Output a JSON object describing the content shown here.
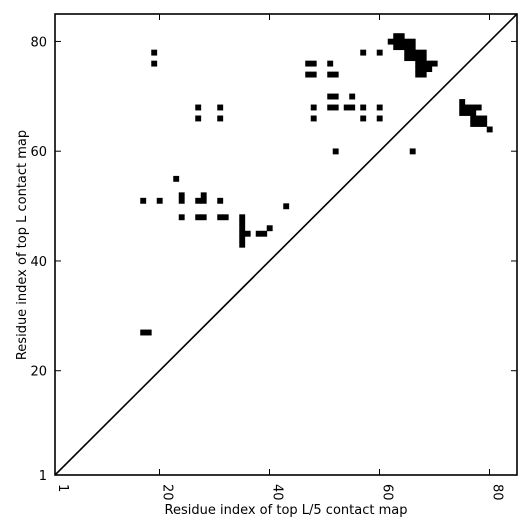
{
  "chart_data": {
    "type": "heatmap",
    "title": "",
    "xlabel": "Residue index of top L/5 contact map",
    "ylabel": "Residue index of top L contact map",
    "xlim": [
      1,
      85
    ],
    "ylim": [
      1,
      85
    ],
    "xticks": [
      1,
      20,
      40,
      60,
      80
    ],
    "yticks": [
      1,
      20,
      40,
      60,
      80
    ],
    "x_tick_rotation": -90,
    "grid": false,
    "diagonal_line": true,
    "cell_color": "#000000",
    "contacts": [
      [
        19,
        78
      ],
      [
        19,
        76
      ],
      [
        17,
        51
      ],
      [
        20,
        51
      ],
      [
        17,
        27
      ],
      [
        18,
        27
      ],
      [
        23,
        55
      ],
      [
        24,
        52
      ],
      [
        24,
        51
      ],
      [
        24,
        48
      ],
      [
        27,
        68
      ],
      [
        27,
        66
      ],
      [
        27,
        51
      ],
      [
        27,
        48
      ],
      [
        28,
        52
      ],
      [
        28,
        51
      ],
      [
        28,
        48
      ],
      [
        31,
        68
      ],
      [
        31,
        66
      ],
      [
        31,
        51
      ],
      [
        31,
        48
      ],
      [
        32,
        48
      ],
      [
        35,
        48
      ],
      [
        35,
        47
      ],
      [
        35,
        46
      ],
      [
        35,
        45
      ],
      [
        35,
        44
      ],
      [
        35,
        43
      ],
      [
        36,
        45
      ],
      [
        38,
        45
      ],
      [
        39,
        45
      ],
      [
        40,
        46
      ],
      [
        43,
        50
      ],
      [
        47,
        76
      ],
      [
        48,
        76
      ],
      [
        47,
        74
      ],
      [
        48,
        74
      ],
      [
        48,
        68
      ],
      [
        48,
        66
      ],
      [
        51,
        76
      ],
      [
        51,
        74
      ],
      [
        52,
        74
      ],
      [
        51,
        70
      ],
      [
        52,
        70
      ],
      [
        51,
        68
      ],
      [
        52,
        68
      ],
      [
        52,
        60
      ],
      [
        54,
        68
      ],
      [
        55,
        68
      ],
      [
        55,
        70
      ],
      [
        57,
        78
      ],
      [
        57,
        68
      ],
      [
        57,
        66
      ],
      [
        60,
        78
      ],
      [
        60,
        68
      ],
      [
        60,
        66
      ],
      [
        62,
        80
      ],
      [
        63,
        81
      ],
      [
        64,
        81
      ],
      [
        63,
        80
      ],
      [
        64,
        80
      ],
      [
        65,
        80
      ],
      [
        66,
        80
      ],
      [
        63,
        79
      ],
      [
        64,
        79
      ],
      [
        65,
        79
      ],
      [
        66,
        79
      ],
      [
        65,
        78
      ],
      [
        66,
        78
      ],
      [
        67,
        78
      ],
      [
        68,
        78
      ],
      [
        65,
        77
      ],
      [
        66,
        77
      ],
      [
        67,
        77
      ],
      [
        68,
        77
      ],
      [
        67,
        76
      ],
      [
        68,
        76
      ],
      [
        69,
        76
      ],
      [
        70,
        76
      ],
      [
        67,
        75
      ],
      [
        68,
        75
      ],
      [
        69,
        75
      ],
      [
        67,
        74
      ],
      [
        68,
        74
      ],
      [
        66,
        60
      ],
      [
        75,
        69
      ],
      [
        75,
        68
      ],
      [
        76,
        68
      ],
      [
        77,
        68
      ],
      [
        78,
        68
      ],
      [
        75,
        67
      ],
      [
        76,
        67
      ],
      [
        77,
        67
      ],
      [
        77,
        66
      ],
      [
        78,
        66
      ],
      [
        79,
        66
      ],
      [
        77,
        65
      ],
      [
        78,
        65
      ],
      [
        79,
        65
      ],
      [
        80,
        64
      ]
    ]
  }
}
